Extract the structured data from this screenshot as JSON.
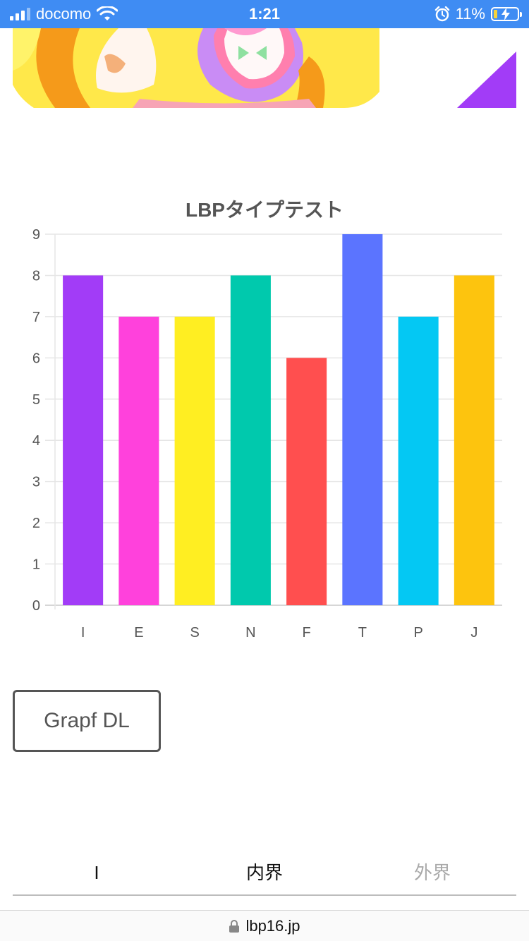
{
  "status_bar": {
    "carrier": "docomo",
    "time": "1:21",
    "battery": "11%"
  },
  "chart_data": {
    "type": "bar",
    "title": "LBPタイプテスト",
    "categories": [
      "I",
      "E",
      "S",
      "N",
      "F",
      "T",
      "P",
      "J"
    ],
    "values": [
      8,
      7,
      7,
      8,
      6,
      9,
      7,
      8
    ],
    "colors": [
      "#a23cf7",
      "#ff41dc",
      "#ffee22",
      "#00c9ad",
      "#ff4f4f",
      "#5b74ff",
      "#04c8f3",
      "#fdc40e"
    ],
    "ylim": [
      0,
      9
    ],
    "yticks": [
      0,
      1,
      2,
      3,
      4,
      5,
      6,
      7,
      8,
      9
    ],
    "grid": true,
    "legend": "none"
  },
  "download_button": {
    "label": "Grapf DL"
  },
  "tabs": [
    {
      "label": "I"
    },
    {
      "label": "内界"
    },
    {
      "label": "外界"
    }
  ],
  "url_bar": {
    "domain": "lbp16.jp"
  },
  "icons": [
    "signal-icon",
    "wifi-icon",
    "alarm-icon",
    "battery-icon",
    "lock-icon"
  ]
}
